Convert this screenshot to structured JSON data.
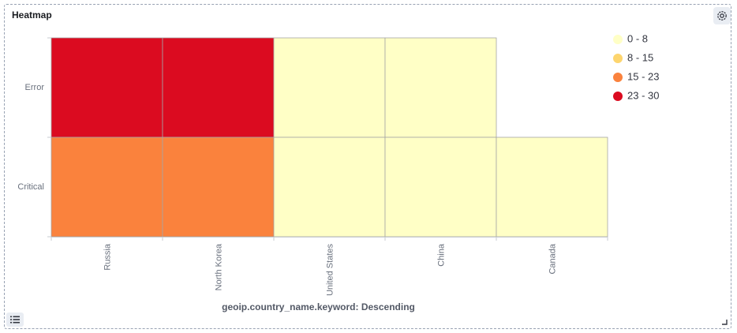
{
  "panel": {
    "title": "Heatmap"
  },
  "icons": {
    "settings": "gear-icon",
    "legend_toggle": "list-icon",
    "resize": "resize-handle-icon"
  },
  "chart_data": {
    "type": "heatmap",
    "title": "Heatmap",
    "xlabel": "geoip.country_name.keyword: Descending",
    "ylabel": "",
    "x_categories": [
      "Russia",
      "North Korea",
      "United States",
      "China",
      "Canada"
    ],
    "y_categories": [
      "Error",
      "Critical"
    ],
    "cells": [
      {
        "x": "Russia",
        "y": "Error",
        "range": "23 - 30"
      },
      {
        "x": "North Korea",
        "y": "Error",
        "range": "23 - 30"
      },
      {
        "x": "United States",
        "y": "Error",
        "range": "0 - 8"
      },
      {
        "x": "China",
        "y": "Error",
        "range": "0 - 8"
      },
      {
        "x": "Russia",
        "y": "Critical",
        "range": "15 - 23"
      },
      {
        "x": "North Korea",
        "y": "Critical",
        "range": "15 - 23"
      },
      {
        "x": "United States",
        "y": "Critical",
        "range": "0 - 8"
      },
      {
        "x": "China",
        "y": "Critical",
        "range": "0 - 8"
      },
      {
        "x": "Canada",
        "y": "Critical",
        "range": "0 - 8"
      }
    ],
    "legend": [
      {
        "label": "0 - 8",
        "color": "#ffffc6"
      },
      {
        "label": "8 - 15",
        "color": "#fdd56e"
      },
      {
        "label": "15 - 23",
        "color": "#fa823d"
      },
      {
        "label": "23 - 30",
        "color": "#db0b20"
      }
    ],
    "legend_position": "top-right",
    "grid": false
  }
}
